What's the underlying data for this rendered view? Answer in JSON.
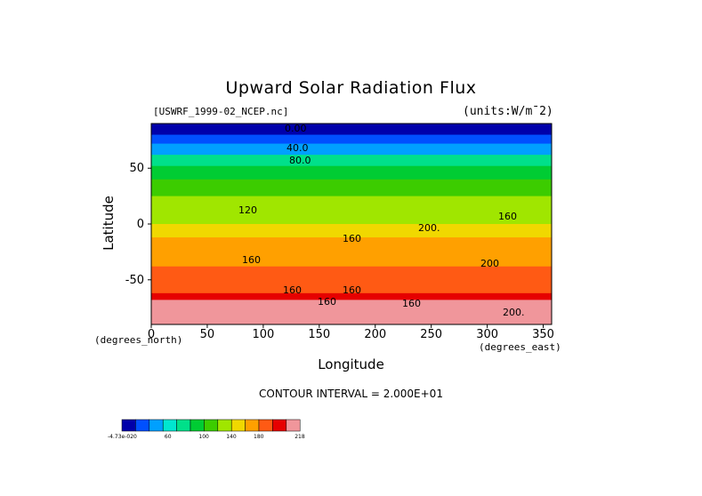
{
  "chart_data": {
    "type": "heatmap",
    "title": "Upward Solar Radiation Flux",
    "source_label": "[USWRF_1999-02_NCEP.nc]",
    "units_label": "(units:W/m¯2)",
    "xlabel": "Longitude",
    "ylabel": "Latitude",
    "x_units_label": "(degrees_east)",
    "y_units_label": "(degrees_north)",
    "xlim": [
      0,
      357.5
    ],
    "ylim": [
      -90,
      90
    ],
    "x_ticks": [
      0,
      50,
      100,
      150,
      200,
      250,
      300,
      350
    ],
    "y_ticks": [
      50,
      0,
      -50
    ],
    "contour_interval_text": "CONTOUR INTERVAL = 2.000E+01",
    "contour_labels": [
      "0.00",
      "40.0",
      "80.0",
      "120",
      "160",
      "160",
      "160",
      "160",
      "160",
      "160",
      "160",
      "200.",
      "200.",
      "200"
    ],
    "colorbar": {
      "labels": [
        "-4.73e-020",
        "60",
        "100",
        "140",
        "180",
        "218"
      ],
      "colors": [
        "#0000aa",
        "#0050ff",
        "#00a0ff",
        "#00e6d0",
        "#00e08a",
        "#00cc33",
        "#3ccc00",
        "#a0e600",
        "#f0d800",
        "#ffa000",
        "#ff5a14",
        "#e60000",
        "#f0969b"
      ]
    },
    "latitude_profile": [
      {
        "lat": 90,
        "value": 0
      },
      {
        "lat": 80,
        "value": 20
      },
      {
        "lat": 72,
        "value": 40
      },
      {
        "lat": 62,
        "value": 60
      },
      {
        "lat": 52,
        "value": 80
      },
      {
        "lat": 40,
        "value": 90
      },
      {
        "lat": 25,
        "value": 100
      },
      {
        "lat": 10,
        "value": 115
      },
      {
        "lat": 0,
        "value": 125
      },
      {
        "lat": -12,
        "value": 140
      },
      {
        "lat": -25,
        "value": 150
      },
      {
        "lat": -38,
        "value": 160
      },
      {
        "lat": -50,
        "value": 170
      },
      {
        "lat": -62,
        "value": 180
      },
      {
        "lat": -68,
        "value": 200
      },
      {
        "lat": -75,
        "value": 218
      },
      {
        "lat": -90,
        "value": 218
      }
    ]
  }
}
